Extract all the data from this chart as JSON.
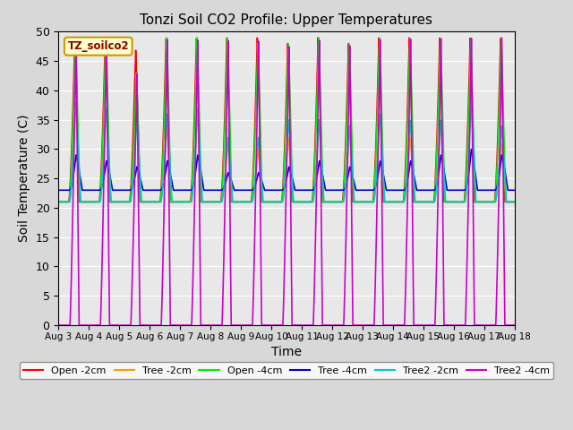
{
  "title": "Tonzi Soil CO2 Profile: Upper Temperatures",
  "xlabel": "Time",
  "ylabel": "Soil Temperature (C)",
  "ylim": [
    0,
    50
  ],
  "yticks": [
    0,
    5,
    10,
    15,
    20,
    25,
    30,
    35,
    40,
    45,
    50
  ],
  "background_color": "#d8d8d8",
  "plot_bg_color": "#e8e8e8",
  "legend_label": "TZ_soilco2",
  "legend_bg": "#ffffcc",
  "legend_border": "#cc9900",
  "series_colors": {
    "Open -2cm": "#ff0000",
    "Tree -2cm": "#ff9900",
    "Open -4cm": "#00ee00",
    "Tree -4cm": "#0000cc",
    "Tree2 -2cm": "#00cccc",
    "Tree2 -4cm": "#cc00cc"
  },
  "date_labels": [
    "Aug 3",
    "Aug 4",
    "Aug 5",
    "Aug 6",
    "Aug 7",
    "Aug 8",
    "Aug 9",
    "Aug 10",
    "Aug 11",
    "Aug 12",
    "Aug 13",
    "Aug 14",
    "Aug 15",
    "Aug 16",
    "Aug 17",
    "Aug 18"
  ],
  "n_days": 15,
  "n_points_per_day": 288,
  "open_2cm_peaks": [
    49,
    49,
    47,
    49,
    49,
    49,
    49,
    48,
    49,
    48,
    49,
    49,
    49,
    49,
    49
  ],
  "tree_2cm_peaks": [
    38,
    37,
    36,
    34,
    36,
    31,
    30,
    32,
    35,
    33,
    36,
    32,
    35,
    38,
    31
  ],
  "open_4cm_peaks": [
    49,
    49,
    43,
    49,
    49,
    49,
    48,
    48,
    49,
    48,
    49,
    49,
    49,
    49,
    49
  ],
  "tree_4cm_peaks": [
    29,
    28,
    27,
    28,
    29,
    26,
    26,
    27,
    28,
    27,
    28,
    28,
    29,
    30,
    29
  ],
  "tree2_2cm_peaks": [
    38,
    37,
    35,
    36,
    37,
    32,
    32,
    35,
    35,
    34,
    36,
    35,
    35,
    39,
    34
  ],
  "tree2_4cm_peaks": [
    49,
    49,
    43,
    49,
    49,
    49,
    49,
    48,
    49,
    48,
    49,
    49,
    49,
    49,
    49
  ],
  "base_temp": 21,
  "tree_4cm_base": 23,
  "magenta_min": 0
}
